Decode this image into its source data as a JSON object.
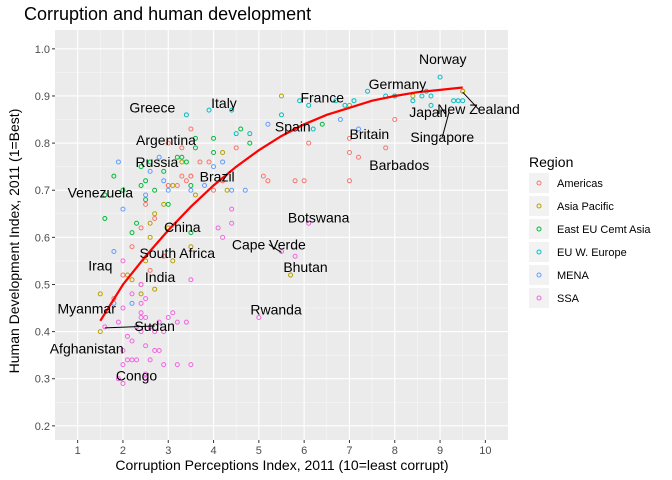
{
  "chart_data": {
    "type": "scatter",
    "title": "Corruption and human development",
    "xlabel": "Corruption Perceptions Index, 2011 (10=least corrupt)",
    "ylabel": "Human Development Index, 2011 (1=Best)",
    "xlim": [
      0.5,
      10.5
    ],
    "ylim": [
      0.17,
      1.04
    ],
    "x_ticks": [
      1,
      2,
      3,
      4,
      5,
      6,
      7,
      8,
      9,
      10
    ],
    "y_ticks": [
      0.2,
      0.3,
      0.4,
      0.5,
      0.6,
      0.7,
      0.8,
      0.9,
      1.0
    ],
    "y_tick_labels": [
      "0.2",
      "0.3",
      "0.4",
      "0.5",
      "0.6",
      "0.7",
      "0.8",
      "0.9",
      "1.0"
    ],
    "grid": true,
    "legend_position": "right",
    "legend_title": "Region",
    "series": [
      {
        "name": "Americas",
        "color": "#F8766D",
        "points": [
          [
            2.6,
            0.53
          ],
          [
            2.9,
            0.56
          ],
          [
            3.0,
            0.71
          ],
          [
            3.0,
            0.71
          ],
          [
            3.2,
            0.71
          ],
          [
            3.3,
            0.73
          ],
          [
            3.4,
            0.72
          ],
          [
            3.5,
            0.73
          ],
          [
            3.7,
            0.76
          ],
          [
            3.0,
            0.8
          ],
          [
            3.3,
            0.79
          ],
          [
            3.5,
            0.73
          ],
          [
            3.9,
            0.76
          ],
          [
            4.0,
            0.7
          ],
          [
            4.2,
            0.72
          ],
          [
            5.1,
            0.73
          ],
          [
            5.2,
            0.72
          ],
          [
            5.8,
            0.72
          ],
          [
            6.1,
            0.8
          ],
          [
            7.0,
            0.72
          ],
          [
            7.0,
            0.78
          ],
          [
            7.0,
            0.81
          ],
          [
            7.2,
            0.77
          ],
          [
            7.8,
            0.79
          ],
          [
            8.0,
            0.85
          ],
          [
            9.5,
            0.91
          ],
          [
            1.8,
            0.47
          ],
          [
            2.0,
            0.52
          ],
          [
            2.2,
            0.58
          ],
          [
            2.4,
            0.62
          ],
          [
            2.5,
            0.67
          ],
          [
            2.7,
            0.64
          ],
          [
            3.5,
            0.83
          ],
          [
            4.5,
            0.79
          ],
          [
            6.0,
            0.72
          ]
        ]
      },
      {
        "name": "Asia Pacific",
        "color": "#B79F00",
        "points": [
          [
            1.5,
            0.4
          ],
          [
            1.5,
            0.48
          ],
          [
            2.1,
            0.52
          ],
          [
            2.2,
            0.51
          ],
          [
            2.4,
            0.5
          ],
          [
            2.5,
            0.55
          ],
          [
            2.6,
            0.6
          ],
          [
            2.6,
            0.63
          ],
          [
            2.7,
            0.65
          ],
          [
            2.9,
            0.67
          ],
          [
            3.0,
            0.62
          ],
          [
            3.1,
            0.55
          ],
          [
            3.1,
            0.71
          ],
          [
            3.3,
            0.76
          ],
          [
            3.5,
            0.58
          ],
          [
            3.6,
            0.69
          ],
          [
            4.2,
            0.78
          ],
          [
            4.3,
            0.7
          ],
          [
            5.5,
            0.9
          ],
          [
            5.7,
            0.52
          ],
          [
            7.0,
            0.88
          ],
          [
            8.0,
            0.9
          ],
          [
            8.4,
            0.9
          ],
          [
            9.5,
            0.91
          ],
          [
            2.4,
            0.48
          ],
          [
            2.7,
            0.49
          ]
        ]
      },
      {
        "name": "East EU Cemt Asia",
        "color": "#00BA38",
        "points": [
          [
            1.6,
            0.64
          ],
          [
            1.6,
            0.69
          ],
          [
            1.8,
            0.73
          ],
          [
            2.0,
            0.7
          ],
          [
            2.2,
            0.61
          ],
          [
            2.3,
            0.63
          ],
          [
            2.4,
            0.71
          ],
          [
            2.4,
            0.75
          ],
          [
            2.5,
            0.72
          ],
          [
            2.6,
            0.76
          ],
          [
            2.7,
            0.7
          ],
          [
            2.9,
            0.74
          ],
          [
            3.2,
            0.77
          ],
          [
            3.3,
            0.77
          ],
          [
            3.4,
            0.76
          ],
          [
            3.5,
            0.71
          ],
          [
            3.6,
            0.79
          ],
          [
            3.6,
            0.81
          ],
          [
            4.0,
            0.78
          ],
          [
            4.0,
            0.81
          ],
          [
            4.6,
            0.83
          ],
          [
            4.8,
            0.8
          ],
          [
            6.4,
            0.84
          ],
          [
            2.5,
            0.68
          ],
          [
            3.0,
            0.67
          ],
          [
            3.5,
            0.61
          ]
        ]
      },
      {
        "name": "EU W. Europe",
        "color": "#00BFC4",
        "points": [
          [
            3.4,
            0.86
          ],
          [
            3.9,
            0.87
          ],
          [
            4.4,
            0.87
          ],
          [
            4.5,
            0.82
          ],
          [
            4.8,
            0.82
          ],
          [
            5.5,
            0.86
          ],
          [
            5.9,
            0.89
          ],
          [
            6.1,
            0.88
          ],
          [
            6.2,
            0.83
          ],
          [
            6.7,
            0.89
          ],
          [
            6.9,
            0.88
          ],
          [
            7.4,
            0.91
          ],
          [
            7.8,
            0.9
          ],
          [
            8.0,
            0.9
          ],
          [
            8.4,
            0.89
          ],
          [
            8.6,
            0.9
          ],
          [
            8.8,
            0.9
          ],
          [
            9.0,
            0.94
          ],
          [
            9.3,
            0.89
          ],
          [
            9.4,
            0.89
          ],
          [
            9.5,
            0.89
          ],
          [
            7.1,
            0.89
          ],
          [
            8.7,
            0.91
          ],
          [
            8.8,
            0.88
          ]
        ]
      },
      {
        "name": "MENA",
        "color": "#619CFF",
        "points": [
          [
            1.8,
            0.57
          ],
          [
            1.8,
            0.46
          ],
          [
            1.9,
            0.76
          ],
          [
            2.2,
            0.46
          ],
          [
            2.5,
            0.69
          ],
          [
            2.6,
            0.74
          ],
          [
            2.9,
            0.72
          ],
          [
            3.0,
            0.7
          ],
          [
            3.5,
            0.7
          ],
          [
            3.8,
            0.71
          ],
          [
            4.0,
            0.75
          ],
          [
            4.2,
            0.76
          ],
          [
            4.4,
            0.7
          ],
          [
            4.7,
            0.7
          ],
          [
            5.2,
            0.84
          ],
          [
            6.8,
            0.85
          ],
          [
            7.2,
            0.83
          ],
          [
            2.8,
            0.77
          ],
          [
            2.0,
            0.66
          ]
        ]
      },
      {
        "name": "SSA",
        "color": "#F564E3",
        "points": [
          [
            1.6,
            0.41
          ],
          [
            1.9,
            0.42
          ],
          [
            2.0,
            0.29
          ],
          [
            2.0,
            0.33
          ],
          [
            2.0,
            0.36
          ],
          [
            2.0,
            0.45
          ],
          [
            2.1,
            0.34
          ],
          [
            2.1,
            0.39
          ],
          [
            2.2,
            0.34
          ],
          [
            2.2,
            0.38
          ],
          [
            2.3,
            0.34
          ],
          [
            2.3,
            0.41
          ],
          [
            2.4,
            0.4
          ],
          [
            2.4,
            0.43
          ],
          [
            2.4,
            0.44
          ],
          [
            2.4,
            0.46
          ],
          [
            2.4,
            0.5
          ],
          [
            2.5,
            0.3
          ],
          [
            2.5,
            0.31
          ],
          [
            2.5,
            0.37
          ],
          [
            2.5,
            0.43
          ],
          [
            2.5,
            0.47
          ],
          [
            2.6,
            0.34
          ],
          [
            2.6,
            0.41
          ],
          [
            2.7,
            0.36
          ],
          [
            2.7,
            0.4
          ],
          [
            2.8,
            0.36
          ],
          [
            2.8,
            0.42
          ],
          [
            2.9,
            0.33
          ],
          [
            2.9,
            0.4
          ],
          [
            3.0,
            0.43
          ],
          [
            3.1,
            0.44
          ],
          [
            3.2,
            0.33
          ],
          [
            3.2,
            0.42
          ],
          [
            3.4,
            0.42
          ],
          [
            3.5,
            0.33
          ],
          [
            3.5,
            0.51
          ],
          [
            4.1,
            0.62
          ],
          [
            4.2,
            0.6
          ],
          [
            4.4,
            0.63
          ],
          [
            4.4,
            0.66
          ],
          [
            5.0,
            0.43
          ],
          [
            5.5,
            0.57
          ],
          [
            5.8,
            0.56
          ],
          [
            6.1,
            0.63
          ],
          [
            1.9,
            0.3
          ],
          [
            2.2,
            0.48
          ],
          [
            2.0,
            0.55
          ]
        ]
      }
    ],
    "trend_line": {
      "color": "#FF0000",
      "points": [
        [
          1.5,
          0.423
        ],
        [
          2.0,
          0.5
        ],
        [
          2.5,
          0.56
        ],
        [
          3.0,
          0.615
        ],
        [
          3.5,
          0.665
        ],
        [
          4.0,
          0.71
        ],
        [
          4.5,
          0.75
        ],
        [
          5.0,
          0.785
        ],
        [
          5.5,
          0.815
        ],
        [
          6.0,
          0.84
        ],
        [
          6.5,
          0.86
        ],
        [
          7.0,
          0.875
        ],
        [
          7.5,
          0.89
        ],
        [
          8.0,
          0.9
        ],
        [
          8.5,
          0.908
        ],
        [
          9.0,
          0.913
        ],
        [
          9.5,
          0.918
        ]
      ]
    },
    "labels": [
      {
        "text": "Norway",
        "x": 9.0,
        "y": 0.943,
        "label_x": 9.06,
        "label_y": 0.978
      },
      {
        "text": "Germany",
        "x": 8.0,
        "y": 0.905,
        "label_x": 8.06,
        "label_y": 0.925
      },
      {
        "text": "France",
        "x": 7.0,
        "y": 0.884,
        "label_x": 6.4,
        "label_y": 0.897
      },
      {
        "text": "Greece",
        "x": 3.4,
        "y": 0.861,
        "label_x": 2.65,
        "label_y": 0.876
      },
      {
        "text": "Italy",
        "x": 3.9,
        "y": 0.874,
        "label_x": 4.23,
        "label_y": 0.885
      },
      {
        "text": "Japan",
        "x": 8.0,
        "y": 0.901,
        "label_x": 8.74,
        "label_y": 0.866
      },
      {
        "text": "New Zealand",
        "x": 9.5,
        "y": 0.908,
        "label_x": 9.85,
        "label_y": 0.872,
        "leader": true
      },
      {
        "text": "Spain",
        "x": 6.2,
        "y": 0.878,
        "label_x": 5.75,
        "label_y": 0.835
      },
      {
        "text": "Singapore",
        "x": 9.2,
        "y": 0.866,
        "label_x": 9.05,
        "label_y": 0.813,
        "leader": true
      },
      {
        "text": "Britain",
        "x": 7.8,
        "y": 0.863,
        "label_x": 7.44,
        "label_y": 0.819
      },
      {
        "text": "Argentina",
        "x": 3.0,
        "y": 0.797,
        "label_x": 2.95,
        "label_y": 0.807
      },
      {
        "text": "Barbados",
        "x": 7.8,
        "y": 0.793,
        "label_x": 8.1,
        "label_y": 0.754
      },
      {
        "text": "Russia",
        "x": 2.4,
        "y": 0.755,
        "label_x": 2.75,
        "label_y": 0.76
      },
      {
        "text": "Brazil",
        "x": 3.8,
        "y": 0.718,
        "label_x": 4.08,
        "label_y": 0.729
      },
      {
        "text": "Venezuela",
        "x": 1.9,
        "y": 0.735,
        "label_x": 1.5,
        "label_y": 0.695
      },
      {
        "text": "China",
        "x": 3.6,
        "y": 0.687,
        "label_x": 3.31,
        "label_y": 0.622
      },
      {
        "text": "Botswana",
        "x": 6.1,
        "y": 0.633,
        "label_x": 6.32,
        "label_y": 0.642
      },
      {
        "text": "Cape Verde",
        "x": 5.5,
        "y": 0.568,
        "label_x": 5.22,
        "label_y": 0.585,
        "leader": true
      },
      {
        "text": "South Africa",
        "x": 4.1,
        "y": 0.619,
        "label_x": 3.2,
        "label_y": 0.567
      },
      {
        "text": "Iraq",
        "x": 1.8,
        "y": 0.573,
        "label_x": 1.5,
        "label_y": 0.54
      },
      {
        "text": "Bhutan",
        "x": 5.7,
        "y": 0.522,
        "label_x": 6.03,
        "label_y": 0.537
      },
      {
        "text": "India",
        "x": 3.1,
        "y": 0.547,
        "label_x": 2.82,
        "label_y": 0.516
      },
      {
        "text": "Myanmar",
        "x": 1.5,
        "y": 0.483,
        "label_x": 1.2,
        "label_y": 0.449
      },
      {
        "text": "Rwanda",
        "x": 5.0,
        "y": 0.429,
        "label_x": 5.38,
        "label_y": 0.447
      },
      {
        "text": "Sudan",
        "x": 1.6,
        "y": 0.408,
        "label_x": 2.7,
        "label_y": 0.412,
        "leader": true
      },
      {
        "text": "Afghanistan",
        "x": 1.5,
        "y": 0.398,
        "label_x": 1.2,
        "label_y": 0.364
      },
      {
        "text": "Congo",
        "x": 2.0,
        "y": 0.286,
        "label_x": 2.3,
        "label_y": 0.307
      }
    ]
  }
}
